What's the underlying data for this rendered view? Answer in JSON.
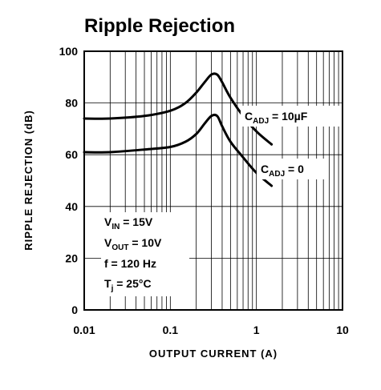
{
  "chart_data": {
    "type": "line",
    "title": "Ripple Rejection",
    "xlabel": "OUTPUT CURRENT (A)",
    "ylabel": "RIPPLE REJECTION (dB)",
    "x_scale": "log",
    "xlim": [
      0.01,
      10
    ],
    "ylim": [
      0,
      100
    ],
    "x_ticks": [
      "0.01",
      "0.1",
      "1",
      "10"
    ],
    "y_ticks": [
      "0",
      "20",
      "40",
      "60",
      "80",
      "100"
    ],
    "grid": true,
    "series": [
      {
        "name": "CADJ = 10µF",
        "label_main": "C",
        "label_sub": "ADJ",
        "label_rest": " = 10µF",
        "x": [
          0.01,
          0.02,
          0.05,
          0.1,
          0.15,
          0.2,
          0.25,
          0.3,
          0.35,
          0.4,
          0.5,
          0.7,
          1.0,
          1.5
        ],
        "y": [
          74,
          74,
          75,
          77,
          80,
          84,
          88,
          91,
          91,
          88,
          82,
          75,
          69,
          64
        ]
      },
      {
        "name": "CADJ = 0",
        "label_main": "C",
        "label_sub": "ADJ",
        "label_rest": " = 0",
        "x": [
          0.01,
          0.02,
          0.05,
          0.1,
          0.15,
          0.2,
          0.25,
          0.3,
          0.35,
          0.4,
          0.5,
          0.7,
          1.0,
          1.5
        ],
        "y": [
          61,
          61,
          62,
          63,
          65,
          68,
          72,
          75,
          75,
          71,
          65,
          59,
          53,
          48
        ]
      }
    ],
    "conditions": [
      {
        "main": "V",
        "sub": "IN",
        "rest": " = 15V"
      },
      {
        "main": "V",
        "sub": "OUT",
        "rest": " = 10V"
      },
      {
        "main": "f = 120 Hz",
        "sub": "",
        "rest": ""
      },
      {
        "main": "T",
        "sub": "j",
        "rest": " = 25°C"
      }
    ]
  }
}
